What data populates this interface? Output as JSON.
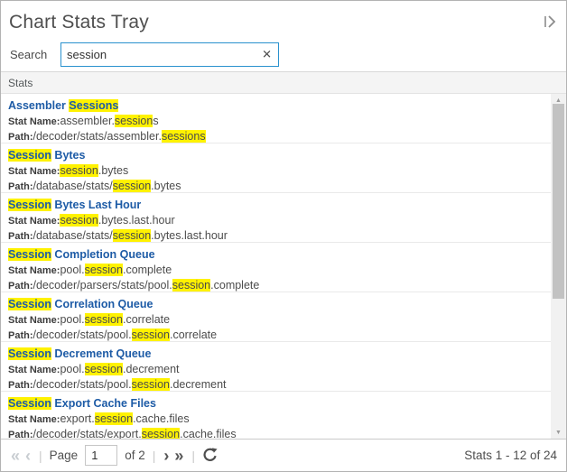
{
  "colors": {
    "highlight": "#fff200",
    "title_link_blue": "#1d5ba6",
    "search_focus_border": "#2a92ce",
    "scrollbar_thumb": "#c2c2c2"
  },
  "header": {
    "title": "Chart Stats Tray"
  },
  "search": {
    "label": "Search",
    "value": "session"
  },
  "list": {
    "section_header": "Stats",
    "stat_name_label": "Stat Name:",
    "path_label": "Path:",
    "items": [
      {
        "title": [
          [
            "Assembler ",
            0
          ],
          [
            "Sessions",
            1
          ]
        ],
        "stat_name": [
          [
            "assembler.",
            0
          ],
          [
            "session",
            1
          ],
          [
            "s",
            0
          ]
        ],
        "path": [
          [
            "/decoder/stats/assembler.",
            0
          ],
          [
            "sessions",
            1
          ]
        ]
      },
      {
        "title": [
          [
            "Session",
            1
          ],
          [
            " Bytes",
            0
          ]
        ],
        "stat_name": [
          [
            "session",
            1
          ],
          [
            ".bytes",
            0
          ]
        ],
        "path": [
          [
            "/database/stats/",
            0
          ],
          [
            "session",
            1
          ],
          [
            ".bytes",
            0
          ]
        ]
      },
      {
        "title": [
          [
            "Session",
            1
          ],
          [
            " Bytes Last Hour",
            0
          ]
        ],
        "stat_name": [
          [
            "session",
            1
          ],
          [
            ".bytes.last.hour",
            0
          ]
        ],
        "path": [
          [
            "/database/stats/",
            0
          ],
          [
            "session",
            1
          ],
          [
            ".bytes.last.hour",
            0
          ]
        ]
      },
      {
        "title": [
          [
            "Session",
            1
          ],
          [
            " Completion Queue",
            0
          ]
        ],
        "stat_name": [
          [
            "pool.",
            0
          ],
          [
            "session",
            1
          ],
          [
            ".complete",
            0
          ]
        ],
        "path": [
          [
            "/decoder/parsers/stats/pool.",
            0
          ],
          [
            "session",
            1
          ],
          [
            ".complete",
            0
          ]
        ]
      },
      {
        "title": [
          [
            "Session",
            1
          ],
          [
            " Correlation Queue",
            0
          ]
        ],
        "stat_name": [
          [
            "pool.",
            0
          ],
          [
            "session",
            1
          ],
          [
            ".correlate",
            0
          ]
        ],
        "path": [
          [
            "/decoder/stats/pool.",
            0
          ],
          [
            "session",
            1
          ],
          [
            ".correlate",
            0
          ]
        ]
      },
      {
        "title": [
          [
            "Session",
            1
          ],
          [
            " Decrement Queue",
            0
          ]
        ],
        "stat_name": [
          [
            "pool.",
            0
          ],
          [
            "session",
            1
          ],
          [
            ".decrement",
            0
          ]
        ],
        "path": [
          [
            "/decoder/stats/pool.",
            0
          ],
          [
            "session",
            1
          ],
          [
            ".decrement",
            0
          ]
        ]
      },
      {
        "title": [
          [
            "Session",
            1
          ],
          [
            " Export Cache Files",
            0
          ]
        ],
        "stat_name": [
          [
            "export.",
            0
          ],
          [
            "session",
            1
          ],
          [
            ".cache.files",
            0
          ]
        ],
        "path": [
          [
            "/decoder/stats/export.",
            0
          ],
          [
            "session",
            1
          ],
          [
            ".cache.files",
            0
          ]
        ]
      }
    ]
  },
  "footer": {
    "page_label": "Page",
    "page_value": "1",
    "of_label": "of 2",
    "status": "Stats 1 - 12 of 24"
  },
  "icons": {
    "collapse_tray": "expand-right",
    "clear_search": "✕",
    "first_page": "«",
    "prev_page": "‹",
    "next_page": "›",
    "last_page": "»",
    "divider": "|",
    "refresh": "refresh-arrow",
    "scroll_up": "▲",
    "scroll_down": "▼"
  }
}
